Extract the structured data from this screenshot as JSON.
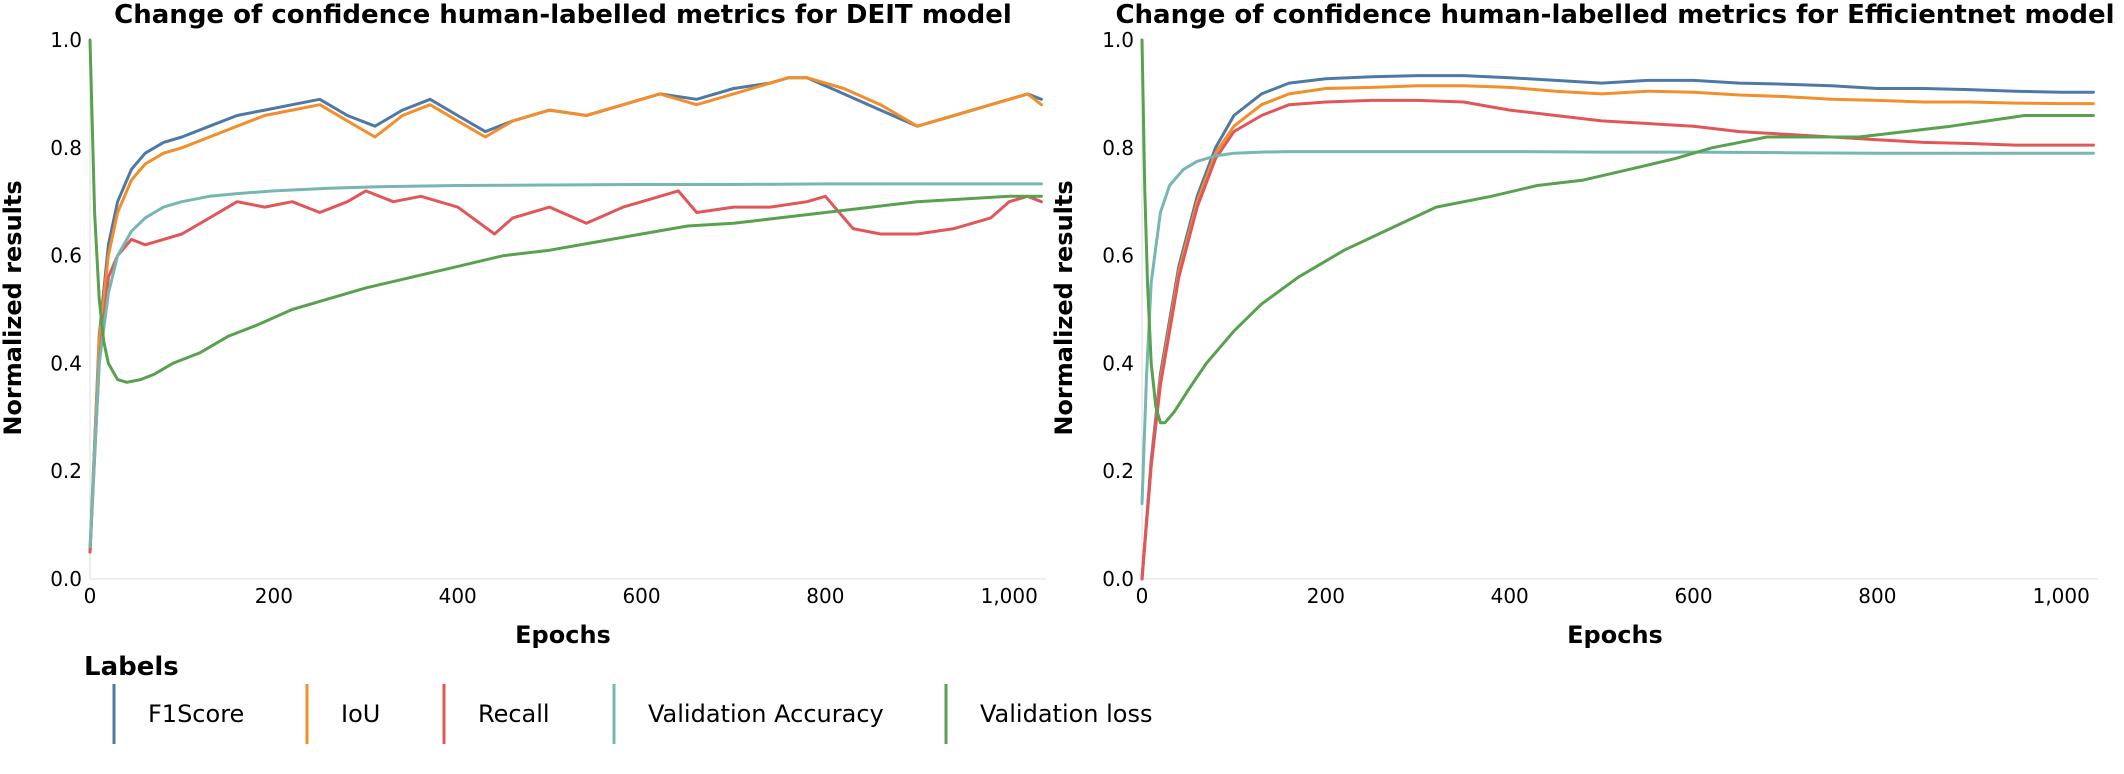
{
  "legend": {
    "title": "Labels",
    "entries": [
      {
        "label": "F1Score",
        "color": "#4e79a7"
      },
      {
        "label": "IoU",
        "color": "#f28e2b"
      },
      {
        "label": "Recall",
        "color": "#e15759"
      },
      {
        "label": "Validation Accuracy",
        "color": "#76b7b2"
      },
      {
        "label": "Validation loss",
        "color": "#59a14f"
      }
    ]
  },
  "chart_data": [
    {
      "type": "line",
      "title": "Change of confidence human-labelled metrics for DEIT model",
      "xlabel": "Epochs",
      "ylabel": "Normalized results",
      "xlim": [
        0,
        1040
      ],
      "ylim": [
        0,
        1.0
      ],
      "xticks": [
        "0",
        "200",
        "400",
        "600",
        "800",
        "1,000"
      ],
      "yticks": [
        "0.0",
        "0.2",
        "0.4",
        "0.6",
        "0.8",
        "1.0"
      ],
      "grid": false,
      "series": [
        {
          "name": "F1Score",
          "color": "#4e79a7",
          "x": [
            0,
            10,
            20,
            30,
            45,
            60,
            80,
            100,
            130,
            160,
            190,
            220,
            250,
            280,
            310,
            340,
            370,
            400,
            430,
            460,
            500,
            540,
            580,
            620,
            660,
            700,
            740,
            760,
            780,
            820,
            860,
            900,
            940,
            980,
            1000,
            1020,
            1035
          ],
          "y": [
            0.05,
            0.45,
            0.62,
            0.7,
            0.76,
            0.79,
            0.81,
            0.82,
            0.84,
            0.86,
            0.87,
            0.88,
            0.89,
            0.86,
            0.84,
            0.87,
            0.89,
            0.86,
            0.83,
            0.85,
            0.87,
            0.86,
            0.88,
            0.9,
            0.89,
            0.91,
            0.92,
            0.93,
            0.93,
            0.9,
            0.87,
            0.84,
            0.86,
            0.88,
            0.89,
            0.9,
            0.89
          ]
        },
        {
          "name": "IoU",
          "color": "#f28e2b",
          "x": [
            0,
            10,
            20,
            30,
            45,
            60,
            80,
            100,
            130,
            160,
            190,
            220,
            250,
            280,
            310,
            340,
            370,
            400,
            430,
            460,
            500,
            540,
            580,
            620,
            660,
            700,
            740,
            760,
            780,
            820,
            860,
            900,
            940,
            980,
            1000,
            1020,
            1035
          ],
          "y": [
            0.05,
            0.44,
            0.6,
            0.68,
            0.74,
            0.77,
            0.79,
            0.8,
            0.82,
            0.84,
            0.86,
            0.87,
            0.88,
            0.85,
            0.82,
            0.86,
            0.88,
            0.85,
            0.82,
            0.85,
            0.87,
            0.86,
            0.88,
            0.9,
            0.88,
            0.9,
            0.92,
            0.93,
            0.93,
            0.91,
            0.88,
            0.84,
            0.86,
            0.88,
            0.89,
            0.9,
            0.88
          ]
        },
        {
          "name": "Recall",
          "color": "#e15759",
          "x": [
            0,
            10,
            20,
            30,
            45,
            60,
            80,
            100,
            130,
            160,
            190,
            220,
            250,
            280,
            300,
            330,
            360,
            400,
            440,
            460,
            500,
            540,
            580,
            620,
            640,
            660,
            700,
            740,
            780,
            800,
            830,
            860,
            900,
            940,
            980,
            1000,
            1020,
            1035
          ],
          "y": [
            0.05,
            0.4,
            0.56,
            0.6,
            0.63,
            0.62,
            0.63,
            0.64,
            0.67,
            0.7,
            0.69,
            0.7,
            0.68,
            0.7,
            0.72,
            0.7,
            0.71,
            0.69,
            0.64,
            0.67,
            0.69,
            0.66,
            0.69,
            0.71,
            0.72,
            0.68,
            0.69,
            0.69,
            0.7,
            0.71,
            0.65,
            0.64,
            0.64,
            0.65,
            0.67,
            0.7,
            0.71,
            0.7
          ]
        },
        {
          "name": "Validation Accuracy",
          "color": "#76b7b2",
          "x": [
            0,
            10,
            20,
            30,
            45,
            60,
            80,
            100,
            130,
            160,
            200,
            260,
            320,
            400,
            500,
            600,
            700,
            800,
            900,
            1000,
            1035
          ],
          "y": [
            0.06,
            0.4,
            0.53,
            0.6,
            0.645,
            0.67,
            0.69,
            0.7,
            0.71,
            0.715,
            0.72,
            0.725,
            0.728,
            0.73,
            0.731,
            0.732,
            0.732,
            0.733,
            0.733,
            0.733,
            0.733
          ]
        },
        {
          "name": "Validation loss",
          "color": "#59a14f",
          "x": [
            0,
            5,
            10,
            15,
            20,
            30,
            40,
            55,
            70,
            90,
            120,
            150,
            180,
            220,
            260,
            300,
            350,
            400,
            450,
            500,
            550,
            600,
            650,
            700,
            750,
            800,
            850,
            900,
            950,
            1000,
            1035
          ],
          "y": [
            1.0,
            0.68,
            0.52,
            0.44,
            0.4,
            0.37,
            0.365,
            0.37,
            0.38,
            0.4,
            0.42,
            0.45,
            0.47,
            0.5,
            0.52,
            0.54,
            0.56,
            0.58,
            0.6,
            0.61,
            0.625,
            0.64,
            0.655,
            0.66,
            0.67,
            0.68,
            0.69,
            0.7,
            0.705,
            0.71,
            0.71
          ]
        }
      ]
    },
    {
      "type": "line",
      "title": "Change of confidence human-labelled metrics for Efficientnet model",
      "xlabel": "Epochs",
      "ylabel": "Normalized results",
      "xlim": [
        0,
        1040
      ],
      "ylim": [
        0,
        1.0
      ],
      "xticks": [
        "0",
        "200",
        "400",
        "600",
        "800",
        "1,000"
      ],
      "yticks": [
        "0.0",
        "0.2",
        "0.4",
        "0.6",
        "0.8",
        "1.0"
      ],
      "grid": false,
      "series": [
        {
          "name": "F1Score",
          "color": "#4e79a7",
          "x": [
            0,
            10,
            20,
            40,
            60,
            80,
            100,
            130,
            160,
            200,
            250,
            300,
            350,
            400,
            450,
            500,
            550,
            600,
            650,
            700,
            750,
            800,
            850,
            900,
            950,
            1000,
            1035
          ],
          "y": [
            0.0,
            0.22,
            0.38,
            0.58,
            0.71,
            0.8,
            0.86,
            0.9,
            0.92,
            0.928,
            0.932,
            0.934,
            0.934,
            0.93,
            0.925,
            0.92,
            0.925,
            0.925,
            0.92,
            0.918,
            0.915,
            0.91,
            0.91,
            0.908,
            0.905,
            0.903,
            0.903
          ]
        },
        {
          "name": "IoU",
          "color": "#f28e2b",
          "x": [
            0,
            10,
            20,
            40,
            60,
            80,
            100,
            130,
            160,
            200,
            250,
            300,
            350,
            400,
            450,
            500,
            550,
            600,
            650,
            700,
            750,
            800,
            850,
            900,
            950,
            1000,
            1035
          ],
          "y": [
            0.0,
            0.21,
            0.37,
            0.57,
            0.7,
            0.79,
            0.84,
            0.88,
            0.9,
            0.91,
            0.912,
            0.915,
            0.915,
            0.912,
            0.905,
            0.9,
            0.905,
            0.903,
            0.898,
            0.895,
            0.89,
            0.888,
            0.885,
            0.885,
            0.883,
            0.882,
            0.882
          ]
        },
        {
          "name": "Recall",
          "color": "#e15759",
          "x": [
            0,
            10,
            20,
            40,
            60,
            80,
            100,
            130,
            160,
            200,
            250,
            300,
            350,
            400,
            450,
            500,
            550,
            600,
            650,
            700,
            750,
            800,
            850,
            900,
            950,
            1000,
            1035
          ],
          "y": [
            0.0,
            0.21,
            0.36,
            0.56,
            0.69,
            0.78,
            0.83,
            0.86,
            0.88,
            0.885,
            0.888,
            0.888,
            0.885,
            0.87,
            0.86,
            0.85,
            0.845,
            0.84,
            0.83,
            0.825,
            0.82,
            0.815,
            0.81,
            0.808,
            0.805,
            0.805,
            0.805
          ]
        },
        {
          "name": "Validation Accuracy",
          "color": "#76b7b2",
          "x": [
            0,
            5,
            10,
            20,
            30,
            45,
            60,
            80,
            100,
            130,
            160,
            200,
            300,
            400,
            500,
            600,
            700,
            800,
            900,
            1000,
            1035
          ],
          "y": [
            0.14,
            0.38,
            0.55,
            0.68,
            0.73,
            0.76,
            0.775,
            0.785,
            0.79,
            0.792,
            0.793,
            0.793,
            0.793,
            0.793,
            0.792,
            0.792,
            0.791,
            0.79,
            0.79,
            0.79,
            0.79
          ]
        },
        {
          "name": "Validation loss",
          "color": "#59a14f",
          "x": [
            0,
            3,
            6,
            10,
            15,
            20,
            25,
            35,
            50,
            70,
            100,
            130,
            170,
            220,
            270,
            320,
            380,
            430,
            480,
            530,
            580,
            620,
            680,
            730,
            780,
            830,
            880,
            920,
            960,
            1000,
            1035
          ],
          "y": [
            1.0,
            0.72,
            0.55,
            0.4,
            0.32,
            0.29,
            0.29,
            0.31,
            0.35,
            0.4,
            0.46,
            0.51,
            0.56,
            0.61,
            0.65,
            0.69,
            0.71,
            0.73,
            0.74,
            0.76,
            0.78,
            0.8,
            0.82,
            0.82,
            0.82,
            0.83,
            0.84,
            0.85,
            0.86,
            0.86,
            0.86
          ]
        }
      ]
    }
  ]
}
